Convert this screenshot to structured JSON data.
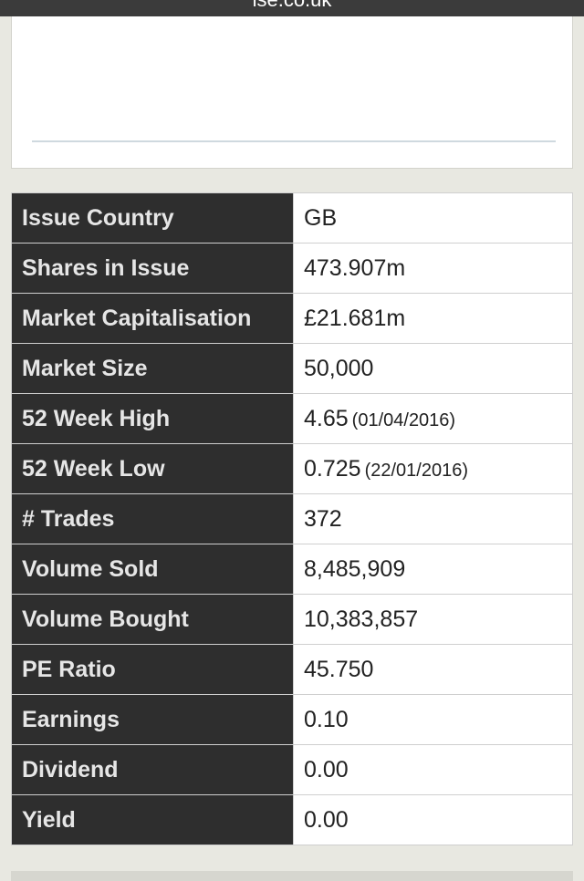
{
  "browser": {
    "url": "lse.co.uk"
  },
  "stats": [
    {
      "label": "Issue Country",
      "value": "GB",
      "sub": ""
    },
    {
      "label": "Shares in Issue",
      "value": "473.907m",
      "sub": ""
    },
    {
      "label": "Market Capitalisation",
      "value": "£21.681m",
      "sub": ""
    },
    {
      "label": "Market Size",
      "value": "50,000",
      "sub": ""
    },
    {
      "label": "52 Week High",
      "value": "4.65",
      "sub": "(01/04/2016)"
    },
    {
      "label": "52 Week Low",
      "value": "0.725",
      "sub": "(22/01/2016)"
    },
    {
      "label": "# Trades",
      "value": "372",
      "sub": ""
    },
    {
      "label": "Volume Sold",
      "value": "8,485,909",
      "sub": ""
    },
    {
      "label": "Volume Bought",
      "value": "10,383,857",
      "sub": ""
    },
    {
      "label": "PE Ratio",
      "value": "45.750",
      "sub": ""
    },
    {
      "label": "Earnings",
      "value": "0.10",
      "sub": ""
    },
    {
      "label": "Dividend",
      "value": "0.00",
      "sub": ""
    },
    {
      "label": "Yield",
      "value": "0.00",
      "sub": ""
    }
  ]
}
